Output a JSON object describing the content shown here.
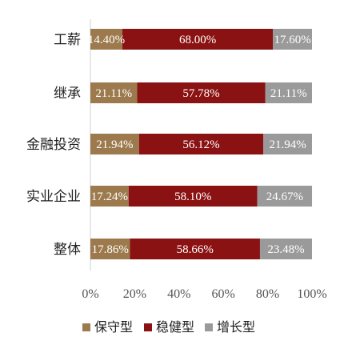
{
  "chart_data": {
    "type": "bar",
    "orientation": "horizontal",
    "stacked": true,
    "categories": [
      "工薪",
      "继承",
      "金融投资",
      "实业企业",
      "整体"
    ],
    "series": [
      {
        "name": "保守型",
        "color": "#9c7a4d",
        "label_color": "#ffffff",
        "values": [
          14.4,
          21.11,
          21.94,
          17.24,
          17.86
        ],
        "labels": [
          "14.40%",
          "21.11%",
          "21.94%",
          "17.24%",
          "17.86%"
        ]
      },
      {
        "name": "稳健型",
        "color": "#8b1212",
        "label_color": "#ffffff",
        "values": [
          68.0,
          57.78,
          56.12,
          58.1,
          58.66
        ],
        "labels": [
          "68.00%",
          "57.78%",
          "56.12%",
          "58.10%",
          "58.66%"
        ]
      },
      {
        "name": "增长型",
        "color": "#9a9a9a",
        "label_color": "#ffffff",
        "values": [
          17.6,
          21.11,
          21.94,
          24.67,
          23.48
        ],
        "labels": [
          "17.60%",
          "21.11%",
          "21.94%",
          "24.67%",
          "23.48%"
        ]
      }
    ],
    "xlim": [
      0,
      100
    ],
    "xticks": [
      "0%",
      "20%",
      "40%",
      "60%",
      "80%",
      "100%"
    ],
    "grid": false,
    "legend_position": "bottom"
  }
}
